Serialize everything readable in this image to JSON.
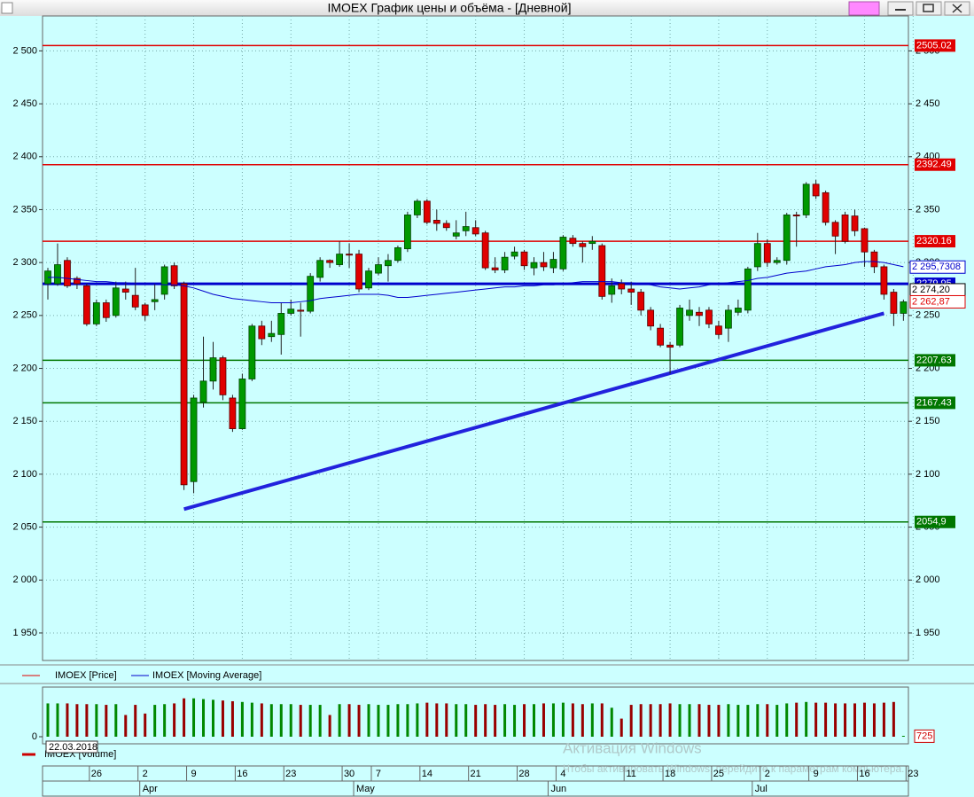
{
  "window_title": "IMOEX График цены и объёма - [Дневной]",
  "chart_data": {
    "type": "candlestick",
    "categories": [
      null,
      null,
      null,
      null,
      null,
      "26",
      null,
      null,
      null,
      null,
      "2",
      null,
      null,
      null,
      null,
      "9",
      null,
      null,
      null,
      null,
      "16",
      null,
      null,
      null,
      null,
      "23",
      null,
      null,
      null,
      null,
      null,
      "30",
      null,
      null,
      "7",
      null,
      null,
      null,
      null,
      "14",
      null,
      null,
      null,
      null,
      "21",
      null,
      null,
      null,
      null,
      "28",
      null,
      null,
      null,
      "4",
      null,
      null,
      null,
      null,
      null,
      null,
      "11",
      null,
      null,
      null,
      "18",
      null,
      null,
      null,
      null,
      "25",
      null,
      null,
      null,
      null,
      "2",
      null,
      null,
      null,
      null,
      "9",
      null,
      null,
      null,
      null,
      "16",
      null,
      null,
      null,
      null,
      "23"
    ],
    "months": [
      null,
      null,
      null,
      null,
      null,
      null,
      null,
      null,
      null,
      null,
      "Apr",
      null,
      null,
      null,
      null,
      null,
      null,
      null,
      null,
      null,
      null,
      null,
      null,
      null,
      null,
      null,
      null,
      null,
      null,
      null,
      null,
      null,
      "May",
      null,
      null,
      null,
      null,
      null,
      null,
      null,
      null,
      null,
      null,
      null,
      null,
      null,
      null,
      null,
      null,
      null,
      null,
      null,
      "Jun",
      null,
      null,
      null,
      null,
      null,
      null,
      null,
      null,
      null,
      null,
      null,
      null,
      null,
      null,
      null,
      null,
      null,
      null,
      null,
      null,
      "Jul",
      null,
      null,
      null,
      null,
      null,
      null,
      null,
      null,
      null,
      null,
      null,
      null,
      null,
      null,
      null,
      null
    ],
    "series": [
      {
        "name": "IMOEX [Price]",
        "color": "#e00000",
        "up_color": "#009900",
        "down_color": "#e00000",
        "open": [
          2280,
          2280,
          2302,
          2285,
          2278,
          2242,
          2262,
          2250,
          2275,
          2269,
          2260,
          2263,
          2270,
          2297,
          2280,
          2093,
          2168,
          2188,
          2210,
          2172,
          2143,
          2190,
          2240,
          2230,
          2232,
          2252,
          2255,
          2254,
          2286,
          2302,
          2298,
          2308,
          2308,
          2276,
          2290,
          2297,
          2302,
          2313,
          2345,
          2358,
          2340,
          2337,
          2325,
          2330,
          2333,
          2328,
          2295,
          2293,
          2306,
          2310,
          2295,
          2300,
          2295,
          2294,
          2323,
          2318,
          2318,
          2316,
          2270,
          2280,
          2275,
          2272,
          2255,
          2238,
          2222,
          2222,
          2250,
          2253,
          2255,
          2240,
          2238,
          2253,
          2255,
          2296,
          2318,
          2300,
          2302,
          2345,
          2345,
          2374,
          2366,
          2338,
          2345,
          2344,
          2332,
          2310,
          2296,
          2272,
          2252,
          null
        ],
        "high": [
          2295,
          2318,
          2305,
          2287,
          2280,
          2265,
          2265,
          2282,
          2282,
          2295,
          2262,
          2280,
          2298,
          2300,
          2282,
          2175,
          2230,
          2225,
          2212,
          2175,
          2195,
          2242,
          2245,
          2245,
          2262,
          2265,
          2262,
          2290,
          2305,
          2303,
          2320,
          2318,
          2312,
          2295,
          2305,
          2308,
          2316,
          2348,
          2360,
          2360,
          2350,
          2340,
          2340,
          2348,
          2340,
          2330,
          2305,
          2310,
          2315,
          2312,
          2305,
          2310,
          2310,
          2326,
          2326,
          2320,
          2325,
          2318,
          2285,
          2284,
          2282,
          2275,
          2258,
          2242,
          2225,
          2260,
          2265,
          2258,
          2258,
          2245,
          2260,
          2265,
          2296,
          2328,
          2322,
          2305,
          2347,
          2348,
          2376,
          2378,
          2368,
          2340,
          2348,
          2350,
          2333,
          2312,
          2298,
          2275,
          2265,
          null
        ],
        "low": [
          2265,
          2278,
          2276,
          2275,
          2240,
          2240,
          2244,
          2248,
          2265,
          2255,
          2245,
          2255,
          2265,
          2275,
          2085,
          2082,
          2163,
          2180,
          2170,
          2140,
          2142,
          2188,
          2222,
          2225,
          2213,
          2250,
          2230,
          2252,
          2282,
          2295,
          2296,
          2295,
          2272,
          2274,
          2288,
          2282,
          2300,
          2310,
          2342,
          2336,
          2330,
          2330,
          2322,
          2325,
          2325,
          2293,
          2290,
          2290,
          2303,
          2293,
          2288,
          2292,
          2290,
          2292,
          2315,
          2300,
          2312,
          2265,
          2262,
          2270,
          2260,
          2250,
          2236,
          2220,
          2195,
          2220,
          2245,
          2240,
          2238,
          2228,
          2225,
          2250,
          2252,
          2292,
          2296,
          2298,
          2298,
          2315,
          2342,
          2360,
          2335,
          2308,
          2318,
          2325,
          2296,
          2290,
          2265,
          2240,
          2245,
          null
        ],
        "close": [
          2292,
          2298,
          2278,
          2280,
          2242,
          2262,
          2248,
          2276,
          2272,
          2258,
          2250,
          2265,
          2296,
          2278,
          2090,
          2172,
          2188,
          2210,
          2175,
          2143,
          2190,
          2240,
          2228,
          2233,
          2252,
          2256,
          2254,
          2287,
          2302,
          2300,
          2308,
          2307,
          2275,
          2292,
          2298,
          2302,
          2314,
          2345,
          2358,
          2338,
          2337,
          2333,
          2328,
          2334,
          2327,
          2295,
          2293,
          2305,
          2310,
          2297,
          2300,
          2296,
          2303,
          2324,
          2318,
          2315,
          2320,
          2268,
          2278,
          2275,
          2272,
          2255,
          2240,
          2222,
          2220,
          2257,
          2255,
          2250,
          2242,
          2232,
          2255,
          2257,
          2294,
          2318,
          2300,
          2302,
          2345,
          2344,
          2374,
          2363,
          2338,
          2325,
          2320,
          2330,
          2310,
          2296,
          2270,
          2252,
          2262.87,
          null
        ]
      },
      {
        "name": "IMOEX [Moving Average]",
        "color": "#0000cc",
        "values": [
          2286,
          2286,
          2285,
          2284,
          2283,
          2282,
          2282,
          2281,
          2281,
          2280,
          2280,
          2280,
          2279,
          2279,
          2278,
          2276,
          2273,
          2270,
          2268,
          2266,
          2265,
          2264,
          2263,
          2262,
          2262,
          2262,
          2263,
          2264,
          2266,
          2267,
          2268,
          2269,
          2270,
          2270,
          2270,
          2269,
          2267,
          2267,
          2268,
          2269,
          2270,
          2271,
          2272,
          2273,
          2274,
          2275,
          2276,
          2277,
          2277,
          2278,
          2278,
          2279,
          2279,
          2280,
          2281,
          2282,
          2282,
          2282,
          2282,
          2281,
          2281,
          2280,
          2279,
          2277,
          2276,
          2275,
          2276,
          2277,
          2279,
          2280,
          2281,
          2282,
          2283,
          2285,
          2286,
          2288,
          2290,
          2291,
          2292,
          2294,
          2296,
          2297,
          2298,
          2300,
          2301,
          2301,
          2300,
          2298,
          2296,
          null
        ]
      }
    ],
    "ylim": [
      1924,
      2533
    ],
    "yticks": [
      {
        "value": 1950,
        "label": "1 950"
      },
      {
        "value": 2000,
        "label": "2 000"
      },
      {
        "value": 2050,
        "label": "2 050"
      },
      {
        "value": 2100,
        "label": "2 100"
      },
      {
        "value": 2150,
        "label": "2 150"
      },
      {
        "value": 2200,
        "label": "2 200"
      },
      {
        "value": 2250,
        "label": "2 250"
      },
      {
        "value": 2300,
        "label": "2 300"
      },
      {
        "value": 2350,
        "label": "2 350"
      },
      {
        "value": 2400,
        "label": "2 400"
      },
      {
        "value": 2450,
        "label": "2 450"
      },
      {
        "value": 2500,
        "label": "2 500"
      }
    ],
    "grid": true,
    "levels": [
      {
        "value": 2505.02,
        "label": "2505.02",
        "color": "#e00000"
      },
      {
        "value": 2392.49,
        "label": "2392.49",
        "color": "#e00000"
      },
      {
        "value": 2320.16,
        "label": "2320.16",
        "color": "#e00000"
      },
      {
        "value": 2279.95,
        "label": "2279.95",
        "color": "#0000cc"
      },
      {
        "value": 2207.63,
        "label": "2207.63",
        "color": "#007700"
      },
      {
        "value": 2167.43,
        "label": "2167.43",
        "color": "#007700"
      },
      {
        "value": 2054.9,
        "label": "2054,9",
        "color": "#007700"
      }
    ],
    "trendline": {
      "color": "#2222dd",
      "x": [
        14,
        86
      ],
      "y": [
        2067,
        2252
      ]
    },
    "price_labels": [
      {
        "value": 2295.7308,
        "label": "2 295,7308",
        "color": "#0000cc"
      },
      {
        "value": 2274.2,
        "label": "2 274,20",
        "color": "#000000"
      },
      {
        "value": 2262.87,
        "label": "2 262,87",
        "color": "#e00000"
      }
    ],
    "volume": {
      "name": "IMOEX [Volume]",
      "color": "#cc0000",
      "values": [
        46000,
        46000,
        46000,
        45000,
        45000,
        45000,
        44000,
        45000,
        30000,
        44000,
        32000,
        44000,
        45000,
        46000,
        53000,
        53000,
        52000,
        51000,
        50000,
        49000,
        48000,
        47000,
        46000,
        45000,
        45000,
        45000,
        44000,
        44000,
        44000,
        30000,
        45000,
        45000,
        44000,
        45000,
        44000,
        44000,
        45000,
        45000,
        46000,
        47000,
        46000,
        46000,
        45000,
        45000,
        44000,
        45000,
        44000,
        45000,
        44000,
        45000,
        45000,
        46000,
        46000,
        47000,
        46000,
        45000,
        46000,
        46000,
        40000,
        25000,
        44000,
        45000,
        45000,
        45000,
        46000,
        45000,
        45000,
        45000,
        44000,
        44000,
        45000,
        44000,
        44000,
        45000,
        45000,
        44000,
        46000,
        47000,
        48000,
        47000,
        47000,
        46000,
        46000,
        46000,
        47000,
        46000,
        47000,
        48000,
        725,
        null
      ],
      "ylim": [
        0,
        60000
      ],
      "yticks": [
        0
      ]
    },
    "cursor_date": "22.03.2018"
  },
  "watermark": {
    "title": "Активация Windows",
    "text": "Чтобы активировать Windows, перейдите к параметрам компьютера."
  }
}
